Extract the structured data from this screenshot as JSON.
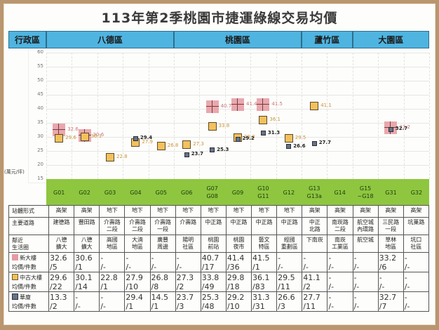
{
  "title": "113年第2季桃園市捷運綠線交易均價",
  "header": {
    "label": "行政區",
    "districts": [
      {
        "name": "八德區",
        "span": 5
      },
      {
        "name": "桃園區",
        "span": 5
      },
      {
        "name": "蘆竹區",
        "span": 2
      },
      {
        "name": "大園區",
        "span": 3
      }
    ]
  },
  "y_axis_unit": "(萬元/坪)",
  "stations": [
    "G01",
    "G02",
    "G03",
    "G04",
    "G05",
    "G06",
    "G07\nG08",
    "G09",
    "G10\nG11",
    "G12",
    "G13\nG13a",
    "G14",
    "G15\n~G18",
    "G31",
    "G32"
  ],
  "rows": {
    "station_type": {
      "label": "站體形式",
      "values": [
        "高架",
        "高架",
        "地下",
        "地下",
        "地下",
        "地下",
        "地下",
        "地下",
        "地下",
        "地下",
        "高架",
        "高架",
        "高架",
        "高架",
        "高架"
      ]
    },
    "main_road": {
      "label": "主要道路",
      "values": [
        "建德路",
        "豐田路",
        "介壽路\n二段",
        "介壽路\n二段",
        "介壽路\n一段",
        "介壽路",
        "中正路",
        "中正路",
        "中正路",
        "中正路",
        "中正\n北路",
        "南崁路\n二段",
        "航空城\n內環路",
        "三民路\n一段",
        "坑菓路"
      ]
    },
    "nearby_area": {
      "label": "鄰近\n生活圈",
      "values": [
        "八德\n擴大",
        "八德\n擴大",
        "高國\n地區",
        "大湳\n地區",
        "廣豐\n周邊",
        "陽明\n社區",
        "桃園\n前站",
        "桃園\n夜市",
        "藝文\n特區",
        "經國\n重劃區",
        "下南崁",
        "南崁\n工業區",
        "航空城",
        "草林\n地區",
        "坑口\n社區"
      ]
    },
    "new_building": {
      "label1": "新大樓",
      "label2": "均價/件數",
      "values": [
        "32.6\n/5",
        "30.6\n/1",
        "-\n/-",
        "-\n/-",
        "-\n/-",
        "-\n/-",
        "40.7\n/17",
        "41.4\n/36",
        "41.5\n/1",
        "-\n/-",
        "-\n/-",
        "-\n/-",
        "-\n/-",
        "33.2\n/6",
        "-\n/-"
      ]
    },
    "used_building": {
      "label1": "中古大樓",
      "label2": "均價/件數",
      "values": [
        "29.6\n/22",
        "30.1\n/14",
        "22.8\n/1",
        "27.9\n/10",
        "26.8\n/8",
        "27.3\n/2",
        "33.8\n/49",
        "29.8\n/18",
        "36.1\n/83",
        "29.5\n/11",
        "41.1\n/2",
        "-\n/-",
        "-\n/-",
        "-\n/-",
        "-\n/-"
      ]
    },
    "apartment": {
      "label1": "華廈",
      "label2": "均價/件數",
      "values": [
        "13.3\n/2",
        "-\n/-",
        "-\n/-",
        "29.4\n/1",
        "14.5\n/1",
        "23.7\n/3",
        "25.3\n/48",
        "29.2\n/10",
        "31.3\n/31",
        "26.6\n/3",
        "27.7\n/11",
        "-\n/-",
        "-\n/-",
        "32.7\n/7",
        "-\n/-"
      ]
    }
  },
  "colors": {
    "header_blue": "#4fb4e0",
    "station_green": "#8ec63f",
    "new": "#e79aa0",
    "used": "#f3c15c",
    "apartment": "#66738a",
    "frame": "#b9966f"
  },
  "chart_data": {
    "type": "scatter",
    "title": "113年第2季桃園市捷運綠線交易均價",
    "xlabel": "",
    "ylabel": "(萬元/坪)",
    "ylim": [
      15,
      60
    ],
    "yticks": [
      15,
      20,
      25,
      30,
      35,
      40,
      45,
      50,
      55,
      60
    ],
    "grid": true,
    "categories": [
      "G01",
      "G02",
      "G03",
      "G04",
      "G05",
      "G06",
      "G07/G08",
      "G09",
      "G10/G11",
      "G12",
      "G13/G13a",
      "G14",
      "G15~G18",
      "G31",
      "G32"
    ],
    "series": [
      {
        "name": "新大樓",
        "values": [
          32.6,
          30.6,
          null,
          null,
          null,
          null,
          40.7,
          41.4,
          41.5,
          null,
          null,
          null,
          null,
          33.2,
          null
        ],
        "labels": [
          "32.6",
          "30.6",
          "",
          "",
          "",
          "",
          "40.7",
          "41.4",
          "41.5",
          "",
          "",
          "",
          "",
          "33.2",
          ""
        ]
      },
      {
        "name": "中古大樓",
        "values": [
          29.6,
          30.1,
          22.8,
          27.9,
          26.8,
          27.3,
          33.8,
          29.8,
          36.1,
          29.5,
          41.1,
          null,
          null,
          null,
          null
        ],
        "labels": [
          "29.6",
          "30.1",
          "22.8",
          "27.9",
          "26.8",
          "27.3",
          "33.8",
          "29.8",
          "36.1",
          "29.5",
          "41.1",
          "",
          "",
          "",
          ""
        ]
      },
      {
        "name": "華廈",
        "values": [
          null,
          null,
          null,
          29.4,
          null,
          23.7,
          25.3,
          29.2,
          31.3,
          26.6,
          27.7,
          null,
          null,
          32.7,
          null
        ],
        "labels": [
          "",
          "",
          "",
          "29.4",
          "",
          "23.7",
          "25.3",
          "29.2",
          "31.3",
          "26.6",
          "27.7",
          "",
          "",
          "32.7",
          ""
        ]
      }
    ]
  }
}
